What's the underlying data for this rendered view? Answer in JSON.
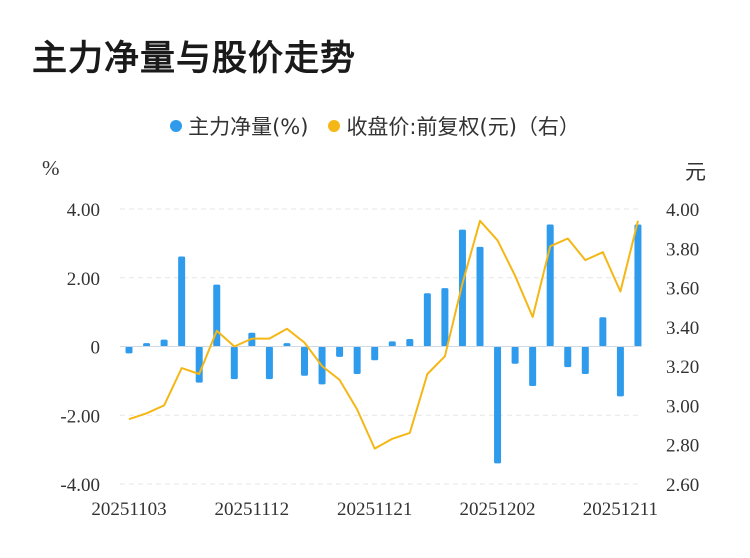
{
  "title": "主力净量与股价走势",
  "legend": {
    "left_label": "主力净量(%)",
    "right_label": "收盘价:前复权(元)（右）",
    "left_color": "#2f9bec",
    "right_color": "#f5b716"
  },
  "units": {
    "left": "%",
    "right": "元"
  },
  "chart_data": {
    "type": "bar+line",
    "left_axis": {
      "ylim": [
        -4.0,
        4.0
      ],
      "ticks": [
        "4.00",
        "2.00",
        "0",
        "-2.00",
        "-4.00"
      ],
      "tick_values": [
        4,
        2,
        0,
        -2,
        -4
      ]
    },
    "right_axis": {
      "ylim": [
        2.6,
        4.0
      ],
      "ticks": [
        "4.00",
        "3.80",
        "3.60",
        "3.40",
        "3.20",
        "3.00",
        "2.80",
        "2.60"
      ],
      "tick_values": [
        4.0,
        3.8,
        3.6,
        3.4,
        3.2,
        3.0,
        2.8,
        2.6
      ]
    },
    "x_tick_labels": [
      "20251103",
      "20251112",
      "20251121",
      "20251202",
      "20251211"
    ],
    "x_tick_indices": [
      0,
      7,
      14,
      21,
      28
    ],
    "grid": true,
    "series": [
      {
        "name": "主力净量(%)",
        "type": "bar",
        "axis": "left",
        "values": [
          -0.2,
          0.1,
          0.2,
          2.62,
          -1.05,
          1.8,
          -0.95,
          0.4,
          -0.95,
          0.1,
          -0.85,
          -1.1,
          -0.3,
          -0.8,
          -0.4,
          0.15,
          0.22,
          1.55,
          1.7,
          3.4,
          2.9,
          -3.4,
          -0.5,
          -1.15,
          3.55,
          -0.6,
          -0.8,
          0.85,
          -1.45,
          3.55
        ]
      },
      {
        "name": "收盘价:前复权(元)（右）",
        "type": "line",
        "axis": "right",
        "values": [
          2.93,
          2.96,
          3.0,
          3.19,
          3.16,
          3.38,
          3.3,
          3.34,
          3.34,
          3.39,
          3.32,
          3.2,
          3.13,
          2.98,
          2.78,
          2.83,
          2.86,
          3.16,
          3.25,
          3.62,
          3.94,
          3.84,
          3.66,
          3.45,
          3.81,
          3.85,
          3.74,
          3.78,
          3.58,
          3.94
        ]
      }
    ]
  }
}
